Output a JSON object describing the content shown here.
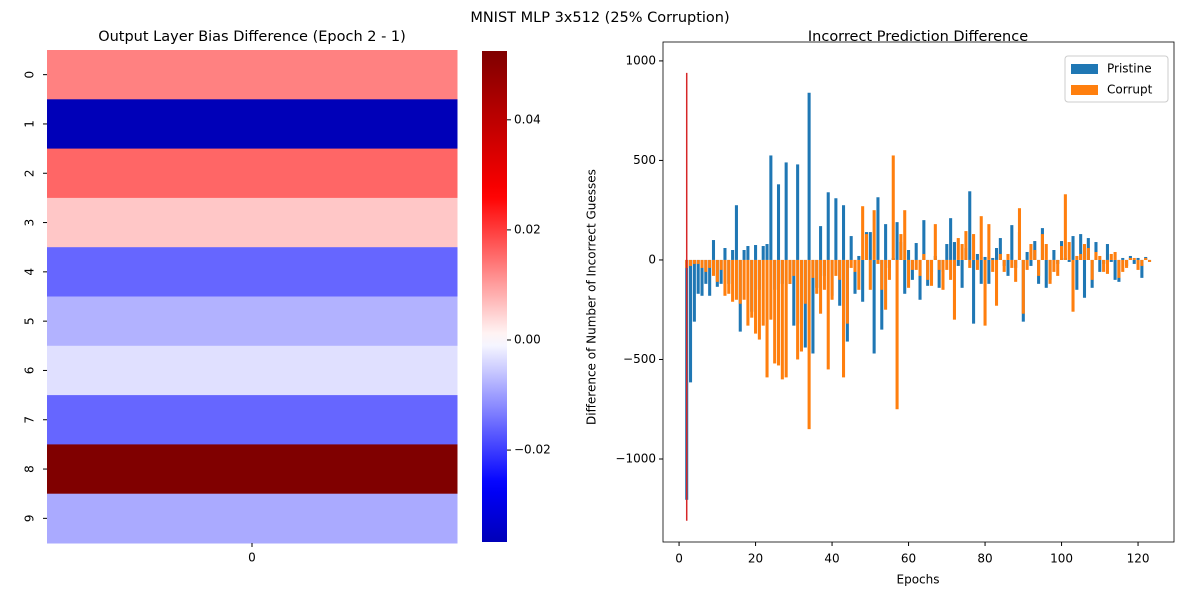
{
  "suptitle": "MNIST MLP 3x512 (25% Corruption)",
  "chart_data": [
    {
      "type": "heatmap",
      "title": "Output Layer Bias Difference (Epoch 2 - 1)",
      "rows": [
        "0",
        "1",
        "2",
        "3",
        "4",
        "5",
        "6",
        "7",
        "8",
        "9"
      ],
      "columns": [
        "0"
      ],
      "values": [
        [
          0.013
        ],
        [
          -0.0367
        ],
        [
          0.0158
        ],
        [
          0.0058
        ],
        [
          -0.0158
        ],
        [
          -0.0079
        ],
        [
          -0.0032
        ],
        [
          -0.0158
        ],
        [
          0.0525
        ],
        [
          -0.0087
        ]
      ],
      "colormap": "seismic",
      "center": 0,
      "clim": [
        -0.0367,
        0.0525
      ],
      "cticks": [
        {
          "value": -0.02,
          "label": "−0.02"
        },
        {
          "value": 0,
          "label": "0.00"
        },
        {
          "value": 0.02,
          "label": "0.02"
        },
        {
          "value": 0.04,
          "label": "0.04"
        }
      ]
    },
    {
      "type": "bar",
      "title": "Incorrect Prediction Difference",
      "xlabel": "Epochs",
      "ylabel": "Difference of Number of Incorrect Guesses",
      "x": [
        2,
        3,
        4,
        5,
        6,
        7,
        8,
        9,
        10,
        11,
        12,
        13,
        14,
        15,
        16,
        17,
        18,
        19,
        20,
        21,
        22,
        23,
        24,
        25,
        26,
        27,
        28,
        29,
        30,
        31,
        32,
        33,
        34,
        35,
        36,
        37,
        38,
        39,
        40,
        41,
        42,
        43,
        44,
        45,
        46,
        47,
        48,
        49,
        50,
        51,
        52,
        53,
        54,
        55,
        56,
        57,
        58,
        59,
        60,
        61,
        62,
        63,
        64,
        65,
        66,
        67,
        68,
        69,
        70,
        71,
        72,
        73,
        74,
        75,
        76,
        77,
        78,
        79,
        80,
        81,
        82,
        83,
        84,
        85,
        86,
        87,
        88,
        89,
        90,
        91,
        92,
        93,
        94,
        95,
        96,
        97,
        98,
        99,
        100,
        101,
        102,
        103,
        104,
        105,
        106,
        107,
        108,
        109,
        110,
        111,
        112,
        113,
        114,
        115,
        116,
        117,
        118,
        119,
        120,
        121,
        122,
        123
      ],
      "series": [
        {
          "name": "Pristine",
          "color": "#1f77b4",
          "values": [
            -1205,
            -615,
            -310,
            -170,
            -180,
            -120,
            -180,
            100,
            -135,
            -120,
            60,
            -120,
            50,
            275,
            -360,
            50,
            70,
            -260,
            75,
            -150,
            70,
            80,
            525,
            -150,
            380,
            -120,
            490,
            -120,
            -330,
            480,
            -320,
            -440,
            840,
            -470,
            -140,
            170,
            -80,
            340,
            -180,
            310,
            -230,
            275,
            -410,
            120,
            -170,
            20,
            -210,
            140,
            140,
            -470,
            315,
            -350,
            180,
            -40,
            10,
            190,
            90,
            -170,
            50,
            -100,
            85,
            -200,
            200,
            -130,
            -60,
            20,
            -140,
            -60,
            80,
            210,
            90,
            -30,
            -140,
            60,
            345,
            -320,
            30,
            -120,
            15,
            -120,
            10,
            60,
            110,
            -30,
            -80,
            175,
            -40,
            140,
            -310,
            40,
            -30,
            95,
            -120,
            160,
            -140,
            -100,
            50,
            -20,
            95,
            10,
            -10,
            120,
            -150,
            130,
            -190,
            110,
            -140,
            90,
            -60,
            -20,
            80,
            -10,
            -100,
            -110,
            10,
            -30,
            20,
            -20,
            10,
            -90,
            15,
            -10
          ]
        },
        {
          "name": "Corrupt",
          "color": "#ff7f0e",
          "values": [
            -40,
            -30,
            -20,
            -20,
            -40,
            -60,
            -40,
            -80,
            -110,
            -50,
            -180,
            -170,
            -210,
            -200,
            -220,
            -200,
            -330,
            -290,
            -370,
            -400,
            -330,
            -590,
            -300,
            -520,
            -530,
            -600,
            -590,
            -120,
            -80,
            -500,
            -460,
            -220,
            -850,
            -90,
            -170,
            -270,
            -150,
            -550,
            -200,
            -80,
            -100,
            -590,
            -320,
            -40,
            -60,
            -150,
            270,
            130,
            -150,
            250,
            -20,
            -150,
            -250,
            -100,
            525,
            -750,
            130,
            250,
            -140,
            -50,
            -50,
            -80,
            30,
            -100,
            -130,
            180,
            -50,
            -150,
            -50,
            -100,
            -300,
            110,
            80,
            145,
            -40,
            130,
            -50,
            220,
            -330,
            180,
            -60,
            -230,
            30,
            -60,
            30,
            -40,
            -110,
            260,
            -270,
            -50,
            80,
            50,
            -80,
            130,
            80,
            -120,
            -60,
            -80,
            70,
            330,
            90,
            -260,
            20,
            30,
            80,
            60,
            -100,
            40,
            20,
            -60,
            -70,
            30,
            40,
            -90,
            -60,
            -40,
            10,
            10,
            -50,
            -30,
            10,
            -10
          ]
        }
      ],
      "highlight": {
        "x": 2,
        "range": [
          -1310,
          940
        ],
        "color": "#d62728"
      },
      "xlim": [
        -4.2,
        129.4
      ],
      "xticks": [
        0,
        20,
        40,
        60,
        80,
        100,
        120
      ],
      "ylim": [
        -1417,
        1095
      ],
      "yticks": [
        {
          "value": -1000,
          "label": "−1000"
        },
        {
          "value": -500,
          "label": "−500"
        },
        0,
        500,
        1000
      ],
      "legend": "upper right"
    }
  ]
}
